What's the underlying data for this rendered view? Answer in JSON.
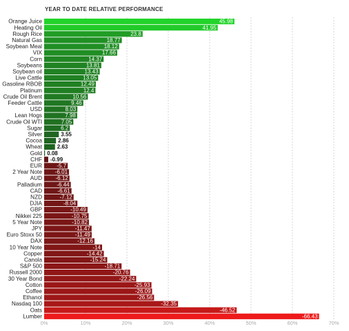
{
  "chart_data": {
    "type": "bar",
    "orientation": "horizontal",
    "title": "YEAR TO DATE RELATIVE PERFORMANCE",
    "categories": [
      "Orange Juice",
      "Heating Oil",
      "Rough Rice",
      "Natural Gas",
      "Soybean Meal",
      "VIX",
      "Corn",
      "Soybeans",
      "Soybean oil",
      "Live Cattle",
      "Gasoline RBOB",
      "Platinum",
      "Crude Oil Brent",
      "Feeder Cattle",
      "USD",
      "Lean Hogs",
      "Crude Oil WTI",
      "Sugar",
      "Silver",
      "Cocoa",
      "Wheat",
      "Gold",
      "CHF",
      "EUR",
      "2 Year Note",
      "AUD",
      "Palladium",
      "CAD",
      "NZD",
      "DJIA",
      "GBP",
      "Nikkei 225",
      "5 Year Note",
      "JPY",
      "Euro Stoxx 50",
      "DAX",
      "10 Year Note",
      "Copper",
      "Canola",
      "S&P 500",
      "Russell 2000",
      "30 Year Bond",
      "Cotton",
      "Coffee",
      "Ethanol",
      "Nasdaq 100",
      "Oats",
      "Lumber"
    ],
    "values": [
      45.98,
      41.95,
      23.8,
      18.77,
      18.12,
      17.66,
      14.37,
      13.81,
      13.43,
      13.05,
      12.49,
      12.4,
      10.56,
      9.46,
      8.03,
      7.98,
      7.05,
      6.2,
      3.55,
      2.86,
      2.63,
      0.08,
      -0.99,
      -5.7,
      -6.01,
      -6.12,
      -6.44,
      -6.61,
      -7.12,
      -8.04,
      -10.49,
      -10.75,
      -10.82,
      -11.47,
      -11.49,
      -12.16,
      -14,
      -14.42,
      -15.24,
      -18.71,
      -20.76,
      -22.24,
      -25.93,
      -26.09,
      -26.56,
      -32.35,
      -46.52,
      -66.43
    ],
    "value_labels": [
      "45.98",
      "41.95",
      "23.8",
      "18.77",
      "18.12",
      "17.66",
      "14.37",
      "13.81",
      "13.43",
      "13.05",
      "12.49",
      "12.4",
      "10.56",
      "9.46",
      "8.03",
      "7.98",
      "7.05",
      "6.2",
      "3.55",
      "2.86",
      "2.63",
      "0.08",
      "-0.99",
      "-5.7",
      "-6.01",
      "-6.12",
      "-6.44",
      "-6.61",
      "-7.12",
      "-8.04",
      "-10.49",
      "-10.75",
      "-10.82",
      "-11.47",
      "-11.49",
      "-12.16",
      "-14",
      "-14.42",
      "-15.24",
      "-18.71",
      "-20.76",
      "-22.24",
      "-25.93",
      "-26.09",
      "-26.56",
      "-32.35",
      "-46.52",
      "-66.43"
    ],
    "xlim": [
      0,
      70
    ],
    "xticks": [
      0,
      10,
      20,
      30,
      40,
      50,
      60,
      70
    ],
    "xtick_labels": [
      "0%",
      "10%",
      "20%",
      "30%",
      "40%",
      "50%",
      "60%",
      "70%"
    ],
    "bar_length": "absolute value",
    "grid": true,
    "xlabel": "",
    "ylabel": "",
    "colors": {
      "positive_strong": "#22d42a",
      "positive_weak": "#1f5a1f",
      "negative_weak": "#5e1515",
      "negative_strong": "#ee1a1a",
      "label_on_bar": "#ffffff",
      "label_off_bar": "#111111",
      "category_text": "#222222",
      "tick_text": "#aaaaaa",
      "grid": "#cccccc"
    }
  }
}
